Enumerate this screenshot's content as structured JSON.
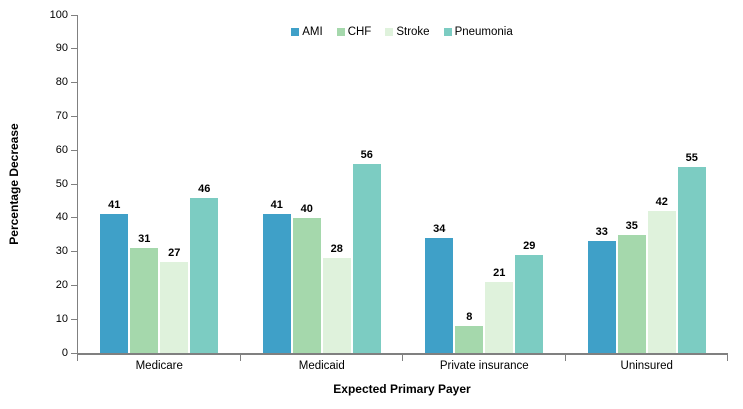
{
  "chart_data": {
    "type": "bar",
    "title": "",
    "xlabel": "Expected Primary Payer",
    "ylabel": "Percentage Decrease",
    "categories": [
      "Medicare",
      "Medicaid",
      "Private insurance",
      "Uninsured"
    ],
    "series": [
      {
        "name": "AMI",
        "color": "#3fa0c8",
        "values": [
          41,
          41,
          34,
          33
        ]
      },
      {
        "name": "CHF",
        "color": "#a5d8ac",
        "values": [
          31,
          40,
          8,
          35
        ]
      },
      {
        "name": "Stroke",
        "color": "#dff2dc",
        "values": [
          27,
          28,
          21,
          42
        ]
      },
      {
        "name": "Pneumonia",
        "color": "#7cccc2",
        "values": [
          46,
          56,
          29,
          55
        ]
      }
    ],
    "ylim": [
      0,
      100
    ],
    "yticks": [
      0,
      10,
      20,
      30,
      40,
      50,
      60,
      70,
      80,
      90,
      100
    ],
    "grid": false,
    "legend_position": "top-center",
    "axis_color": "#808080",
    "text_color": "#000000",
    "value_labels": true
  }
}
